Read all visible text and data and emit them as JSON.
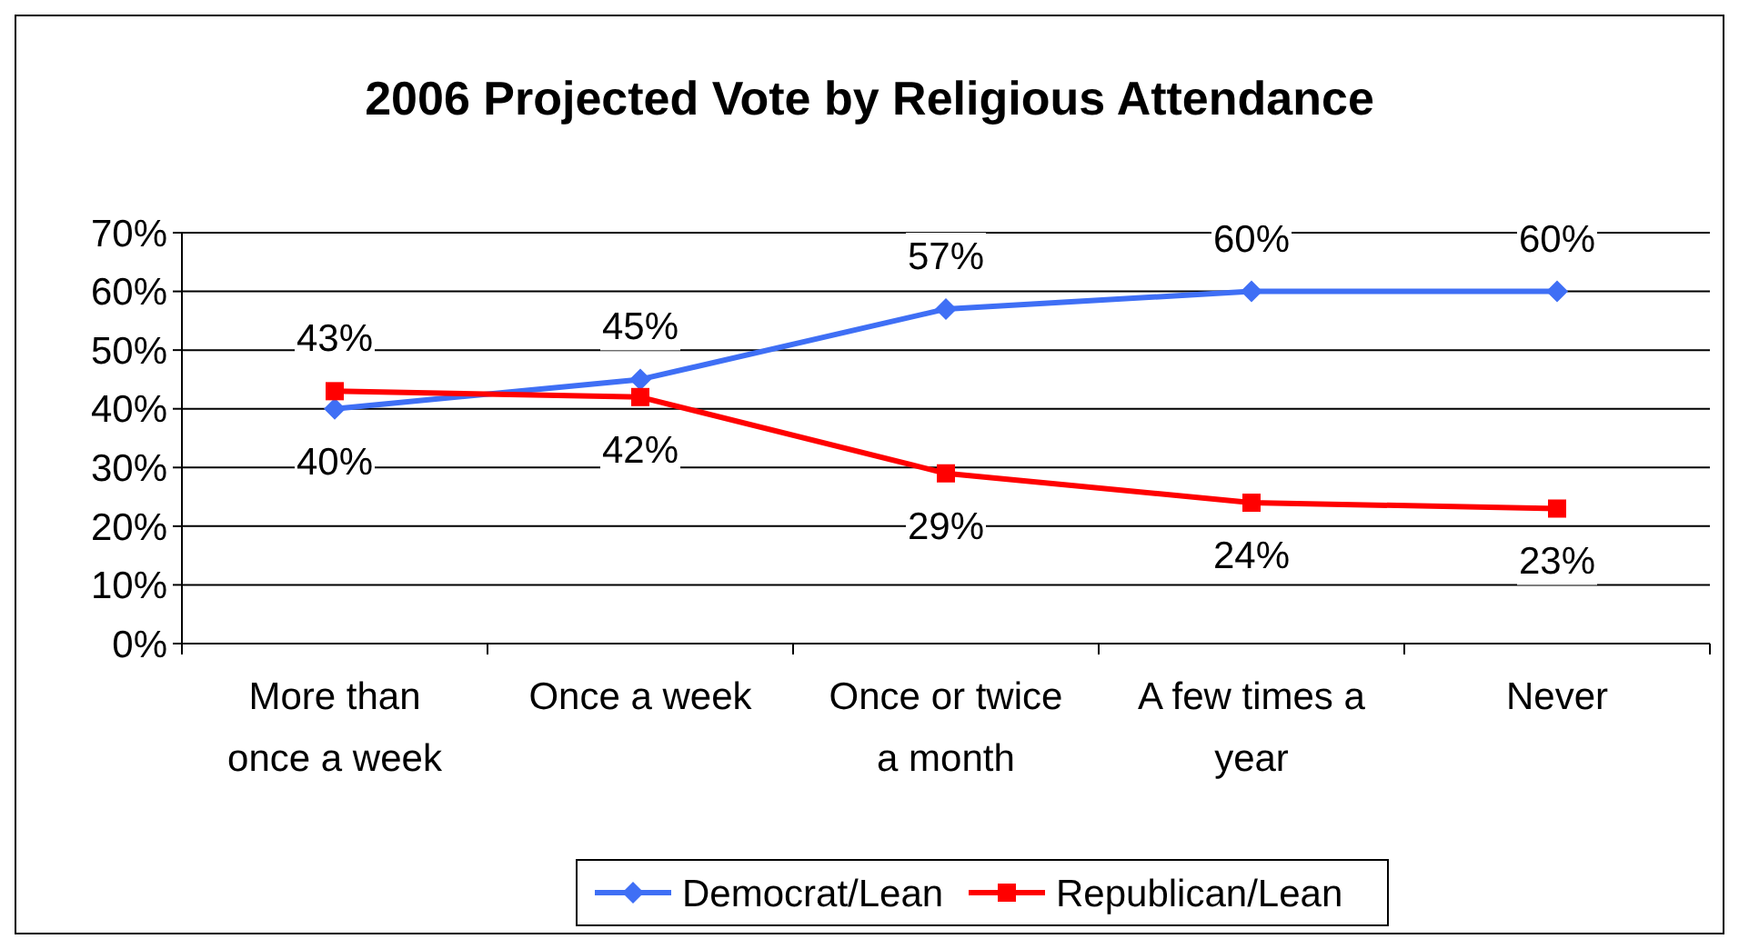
{
  "chart_data": {
    "type": "line",
    "title": "2006 Projected Vote by Religious Attendance",
    "categories": [
      "More than once a week",
      "Once a week",
      "Once or twice a month",
      "A few times a year",
      "Never"
    ],
    "series": [
      {
        "name": "Democrat/Lean",
        "color": "#3f6ff5",
        "values": [
          40,
          45,
          57,
          60,
          60
        ],
        "value_labels": [
          "40%",
          "45%",
          "57%",
          "60%",
          "60%"
        ],
        "marker": "diamond"
      },
      {
        "name": "Republican/Lean",
        "color": "#ff0000",
        "values": [
          43,
          42,
          29,
          24,
          23
        ],
        "value_labels": [
          "43%",
          "42%",
          "29%",
          "24%",
          "23%"
        ],
        "marker": "square"
      }
    ],
    "ylim": [
      0,
      70
    ],
    "yticks": [
      {
        "value": 0,
        "label": "0%"
      },
      {
        "value": 10,
        "label": "10%"
      },
      {
        "value": 20,
        "label": "20%"
      },
      {
        "value": 30,
        "label": "30%"
      },
      {
        "value": 40,
        "label": "40%"
      },
      {
        "value": 50,
        "label": "50%"
      },
      {
        "value": 60,
        "label": "60%"
      },
      {
        "value": 70,
        "label": "70%"
      }
    ],
    "grid": "y",
    "legend": "bottom",
    "line_style": "solid"
  }
}
